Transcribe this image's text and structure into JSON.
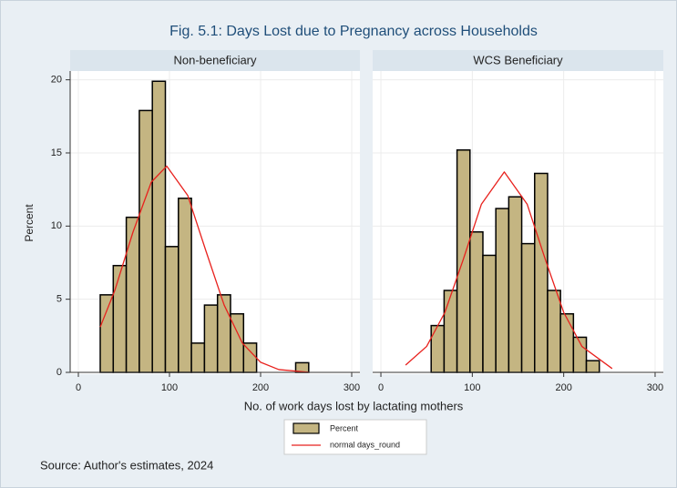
{
  "figure": {
    "title": "Fig. 5.1: Days Lost due to Pregnancy across Households",
    "ylabel": "Percent",
    "xlabel": "No. of work days lost by lactating mothers",
    "source": "Source: Author's estimates, 2024"
  },
  "legend": [
    {
      "name": "Percent",
      "color": "#c4b582"
    },
    {
      "name": "normal days_round",
      "color": "#e8211d"
    }
  ],
  "chart_data": [
    {
      "type": "histogram",
      "title": "Non-beneficiary",
      "bins": [
        24,
        38.3,
        52.6,
        66.9,
        81.2,
        95.5,
        109.8,
        124.1,
        138.4,
        152.7,
        167,
        181.3,
        195.6,
        209.9,
        224.2,
        238.5,
        252.8
      ],
      "values": [
        5.3,
        7.3,
        10.6,
        17.9,
        19.9,
        8.6,
        11.9,
        2,
        4.6,
        5.3,
        4,
        2,
        0,
        0,
        0,
        0.66
      ],
      "curve": {
        "x": [
          24,
          40,
          60,
          80,
          97,
          120,
          140,
          160,
          180,
          200,
          220,
          253
        ],
        "values": [
          3.1,
          5.6,
          9.6,
          13,
          14.1,
          12.1,
          8.3,
          4.6,
          2,
          0.69,
          0.19,
          0.01
        ]
      },
      "xlim": [
        -9,
        309
      ],
      "xticks": [
        0,
        100,
        200,
        300
      ],
      "ylim": [
        0,
        20.6
      ],
      "yticks": [
        0,
        5,
        10,
        15,
        20
      ],
      "grid": true
    },
    {
      "type": "histogram",
      "title": "WCS Beneficiary",
      "bins": [
        55,
        69.15,
        83.3,
        97.45,
        111.6,
        125.75,
        139.9,
        154.05,
        168.2,
        182.35,
        196.5,
        210.65,
        224.8,
        238.95
      ],
      "values": [
        3.2,
        5.6,
        15.2,
        9.6,
        8,
        11.2,
        12,
        8.8,
        13.6,
        5.6,
        4,
        2.4,
        0.8
      ],
      "curve": {
        "x": [
          27,
          50,
          70,
          90,
          110,
          135,
          160,
          180,
          200,
          220,
          253
        ],
        "values": [
          0.5,
          1.77,
          4.1,
          7.7,
          11.5,
          13.7,
          11.5,
          7.7,
          4.1,
          1.77,
          0.26
        ]
      },
      "xlim": [
        -9,
        309
      ],
      "xticks": [
        0,
        100,
        200,
        300
      ],
      "ylim": [
        0,
        20.6
      ],
      "yticks": [
        0,
        5,
        10,
        15,
        20
      ],
      "grid": true
    }
  ]
}
